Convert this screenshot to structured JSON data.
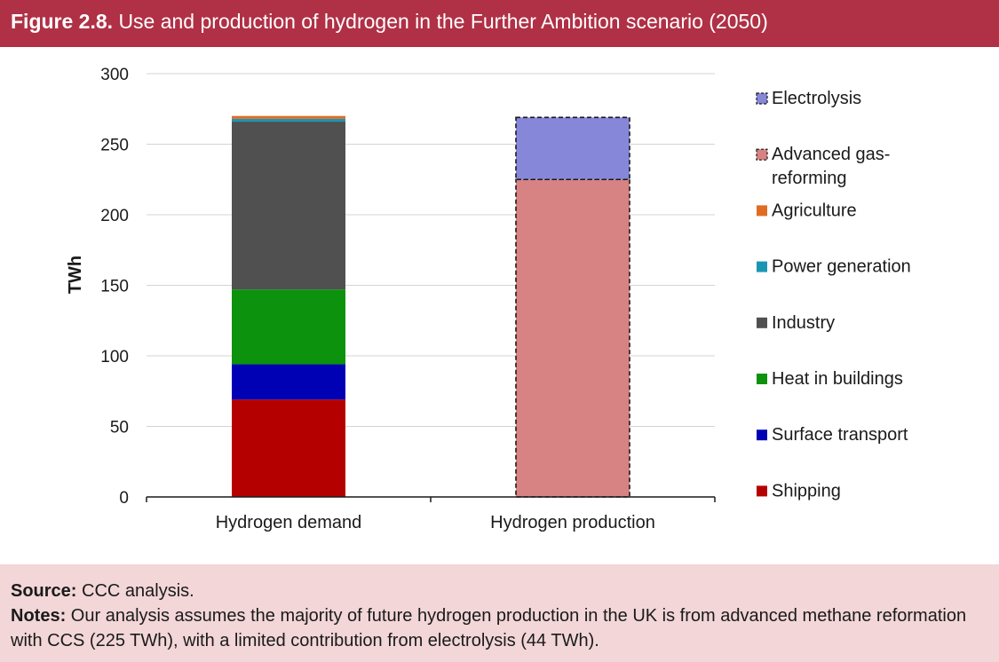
{
  "header": {
    "figure_label": "Figure 2.8.",
    "title": "Use and production of hydrogen in the Further Ambition scenario (2050)"
  },
  "footer": {
    "source_label": "Source:",
    "source_text": "CCC analysis.",
    "notes_label": "Notes:",
    "notes_text": "Our analysis assumes the majority of future hydrogen production in the UK is from advanced methane reformation with CCS (225 TWh), with a limited contribution from electrolysis (44 TWh)."
  },
  "chart_data": {
    "type": "bar",
    "stacked": true,
    "title": "",
    "xlabel": "",
    "ylabel": "TWh",
    "ylim": [
      0,
      300
    ],
    "yticks": [
      0,
      50,
      100,
      150,
      200,
      250,
      300
    ],
    "grid": true,
    "legend_position": "right",
    "categories": [
      "Hydrogen demand",
      "Hydrogen production"
    ],
    "series": [
      {
        "name": "Shipping",
        "values": [
          69,
          0
        ],
        "color": "#b50000",
        "dashed": false
      },
      {
        "name": "Surface transport",
        "values": [
          25,
          0
        ],
        "color": "#0000b4",
        "dashed": false
      },
      {
        "name": "Heat in buildings",
        "values": [
          53,
          0
        ],
        "color": "#0c920c",
        "dashed": false
      },
      {
        "name": "Industry",
        "values": [
          119,
          0
        ],
        "color": "#505050",
        "dashed": false
      },
      {
        "name": "Power generation",
        "values": [
          2,
          0
        ],
        "color": "#1a96b4",
        "dashed": false
      },
      {
        "name": "Agriculture",
        "values": [
          2,
          0
        ],
        "color": "#e06c24",
        "dashed": false
      },
      {
        "name": "Advanced gas-reforming",
        "values": [
          0,
          225
        ],
        "color": "#d78283",
        "dashed": true
      },
      {
        "name": "Electrolysis",
        "values": [
          0,
          44
        ],
        "color": "#8787d9",
        "dashed": true
      }
    ],
    "legend_order": [
      "Electrolysis",
      "Advanced gas-reforming",
      "Agriculture",
      "Power generation",
      "Industry",
      "Heat in buildings",
      "Surface transport",
      "Shipping"
    ]
  }
}
